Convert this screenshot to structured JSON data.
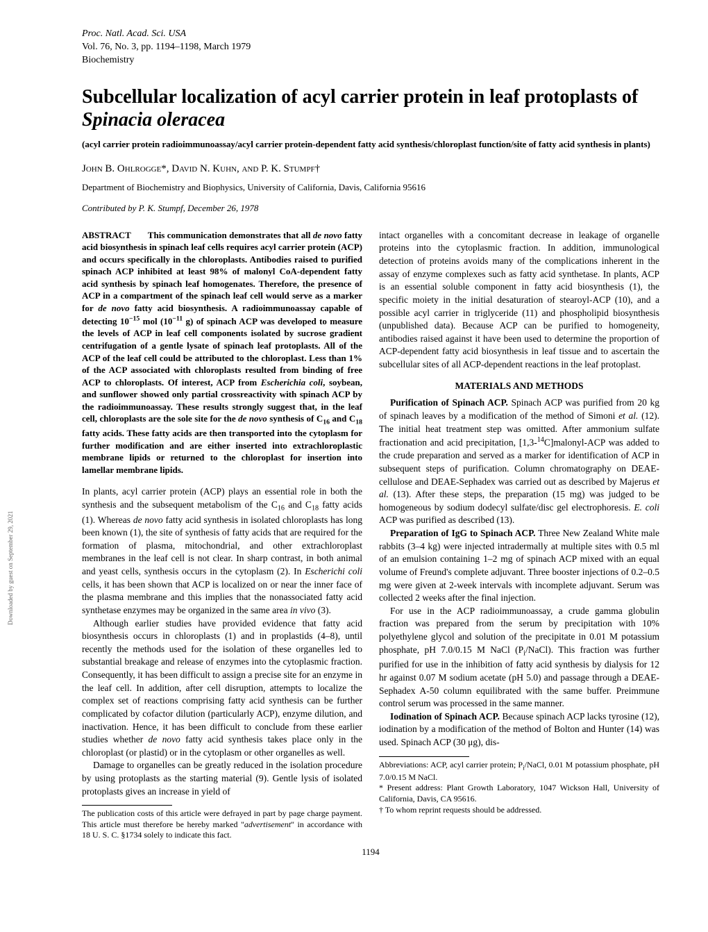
{
  "journal": {
    "line1": "Proc. Natl. Acad. Sci. USA",
    "line2": "Vol. 76, No. 3, pp. 1194–1198, March 1979",
    "line3": "Biochemistry"
  },
  "title_plain": "Subcellular localization of acyl carrier protein in leaf protoplasts of ",
  "title_species": "Spinacia oleracea",
  "subtitle": "(acyl carrier protein radioimmunoassay/acyl carrier protein-dependent fatty acid synthesis/chloroplast function/site of fatty acid synthesis in plants)",
  "authors_prefix": "John B. Ohlrogge*, David N. Kuhn, and P. K. Stumpf†",
  "dept": "Department of Biochemistry and Biophysics, University of California, Davis, California 95616",
  "contributed": "Contributed by P. K. Stumpf, December 26, 1978",
  "abstract_label": "ABSTRACT",
  "abstract_html": "This communication demonstrates that all <span class='ital'>de novo</span> fatty acid biosynthesis in spinach leaf cells requires acyl carrier protein (ACP) and occurs specifically in the chloroplasts. Antibodies raised to purified spinach ACP inhibited at least 98% of malonyl CoA-dependent fatty acid synthesis by spinach leaf homogenates. Therefore, the presence of ACP in a compartment of the spinach leaf cell would serve as a marker for <span class='ital'>de novo</span> fatty acid biosynthesis. A radioimmunoassay capable of detecting 10<sup>−15</sup> mol (10<sup>−11</sup> g) of spinach ACP was developed to measure the levels of ACP in leaf cell components isolated by sucrose gradient centrifugation of a gentle lysate of spinach leaf protoplasts. All of the ACP of the leaf cell could be attributed to the chloroplast. Less than 1% of the ACP associated with chloroplasts resulted from binding of free ACP to chloroplasts. Of interest, ACP from <span class='ital'>Escherichia coli</span>, soybean, and sunflower showed only partial crossreactivity with spinach ACP by the radioimmunoassay. These results strongly suggest that, in the leaf cell, chloroplasts are the sole site for the <span class='ital'>de novo</span> synthesis of C<sub>16</sub> and C<sub>18</sub> fatty acids. These fatty acids are then transported into the cytoplasm for further modification and are either inserted into extrachloroplastic membrane lipids or returned to the chloroplast for insertion into lamellar membrane lipids.",
  "col1_p1_html": "In plants, acyl carrier protein (ACP) plays an essential role in both the synthesis and the subsequent metabolism of the C<sub>16</sub> and C<sub>18</sub> fatty acids (1). Whereas <span class='ital'>de novo</span> fatty acid synthesis in isolated chloroplasts has long been known (1), the site of synthesis of fatty acids that are required for the formation of plasma, mitochondrial, and other extrachloroplast membranes in the leaf cell is not clear. In sharp contrast, in both animal and yeast cells, synthesis occurs in the cytoplasm (2). In <span class='ital'>Escherichi coli</span> cells, it has been shown that ACP is localized on or near the inner face of the plasma membrane and this implies that the nonassociated fatty acid synthetase enzymes may be organized in the same area <span class='ital'>in vivo</span> (3).",
  "col1_p2_html": "Although earlier studies have provided evidence that fatty acid biosynthesis occurs in chloroplasts (1) and in proplastids (4–8), until recently the methods used for the isolation of these organelles led to substantial breakage and release of enzymes into the cytoplasmic fraction. Consequently, it has been difficult to assign a precise site for an enzyme in the leaf cell. In addition, after cell disruption, attempts to localize the complex set of reactions comprising fatty acid synthesis can be further complicated by cofactor dilution (particularly ACP), enzyme dilution, and inactivation. Hence, it has been difficult to conclude from these earlier studies whether <span class='ital'>de novo</span> fatty acid synthesis takes place only in the chloroplast (or plastid) or in the cytoplasm or other organelles as well.",
  "col1_p3": "Damage to organelles can be greatly reduced in the isolation procedure by using protoplasts as the starting material (9). Gentle lysis of isolated protoplasts gives an increase in yield of",
  "col1_footnote_html": "The publication costs of this article were defrayed in part by page charge payment. This article must therefore be hereby marked \"<span class='ital'>advertisement</span>\" in accordance with 18 U. S. C. §1734 solely to indicate this fact.",
  "col2_p1": "intact organelles with a concomitant decrease in leakage of organelle proteins into the cytoplasmic fraction. In addition, immunological detection of proteins avoids many of the complications inherent in the assay of enzyme complexes such as fatty acid synthetase. In plants, ACP is an essential soluble component in fatty acid biosynthesis (1), the specific moiety in the initial desaturation of stearoyl-ACP (10), and a possible acyl carrier in triglyceride (11) and phospholipid biosynthesis (unpublished data). Because ACP can be purified to homogeneity, antibodies raised against it have been used to determine the proportion of ACP-dependent fatty acid biosynthesis in leaf tissue and to ascertain the subcellular sites of all ACP-dependent reactions in the leaf protoplast.",
  "section_head": "MATERIALS AND METHODS",
  "col2_p2_html": "<b>Purification of Spinach ACP.</b> Spinach ACP was purified from 20 kg of spinach leaves by a modification of the method of Simoni <span class='ital'>et al.</span> (12). The initial heat treatment step was omitted. After ammonium sulfate fractionation and acid precipitation, [1,3-<sup>14</sup>C]malonyl-ACP was added to the crude preparation and served as a marker for identification of ACP in subsequent steps of purification. Column chromatography on DEAE-cellulose and DEAE-Sephadex was carried out as described by Majerus <span class='ital'>et al.</span> (13). After these steps, the preparation (15 mg) was judged to be homogeneous by sodium dodecyl sulfate/disc gel electrophoresis. <span class='ital'>E. coli</span> ACP was purified as described (13).",
  "col2_p3_html": "<b>Preparation of IgG to Spinach ACP.</b> Three New Zealand White male rabbits (3–4 kg) were injected intradermally at multiple sites with 0.5 ml of an emulsion containing 1–2 mg of spinach ACP mixed with an equal volume of Freund's complete adjuvant. Three booster injections of 0.2–0.5 mg were given at 2-week intervals with incomplete adjuvant. Serum was collected 2 weeks after the final injection.",
  "col2_p4_html": "For use in the ACP radioimmunoassay, a crude gamma globulin fraction was prepared from the serum by precipitation with 10% polyethylene glycol and solution of the precipitate in 0.01 M potassium phosphate, pH 7.0/0.15 M NaCl (P<sub>i</sub>/NaCl). This fraction was further purified for use in the inhibition of fatty acid synthesis by dialysis for 12 hr against 0.07 M sodium acetate (pH 5.0) and passage through a DEAE-Sephadex A-50 column equilibrated with the same buffer. Preimmune control serum was processed in the same manner.",
  "col2_p5_html": "<b>Iodination of Spinach ACP.</b> Because spinach ACP lacks tyrosine (12), iodination by a modification of the method of Bolton and Hunter (14) was used. Spinach ACP (30 μg), dis-",
  "col2_footnote1_html": "Abbreviations: ACP, acyl carrier protein; P<sub>i</sub>/NaCl, 0.01 M potassium phosphate, pH 7.0/0.15 M NaCl.",
  "col2_footnote2": "* Present address: Plant Growth Laboratory, 1047 Wickson Hall, University of California, Davis, CA 95616.",
  "col2_footnote3": "† To whom reprint requests should be addressed.",
  "pagenum": "1194",
  "sidetext": "Downloaded by guest on September 29, 2021"
}
